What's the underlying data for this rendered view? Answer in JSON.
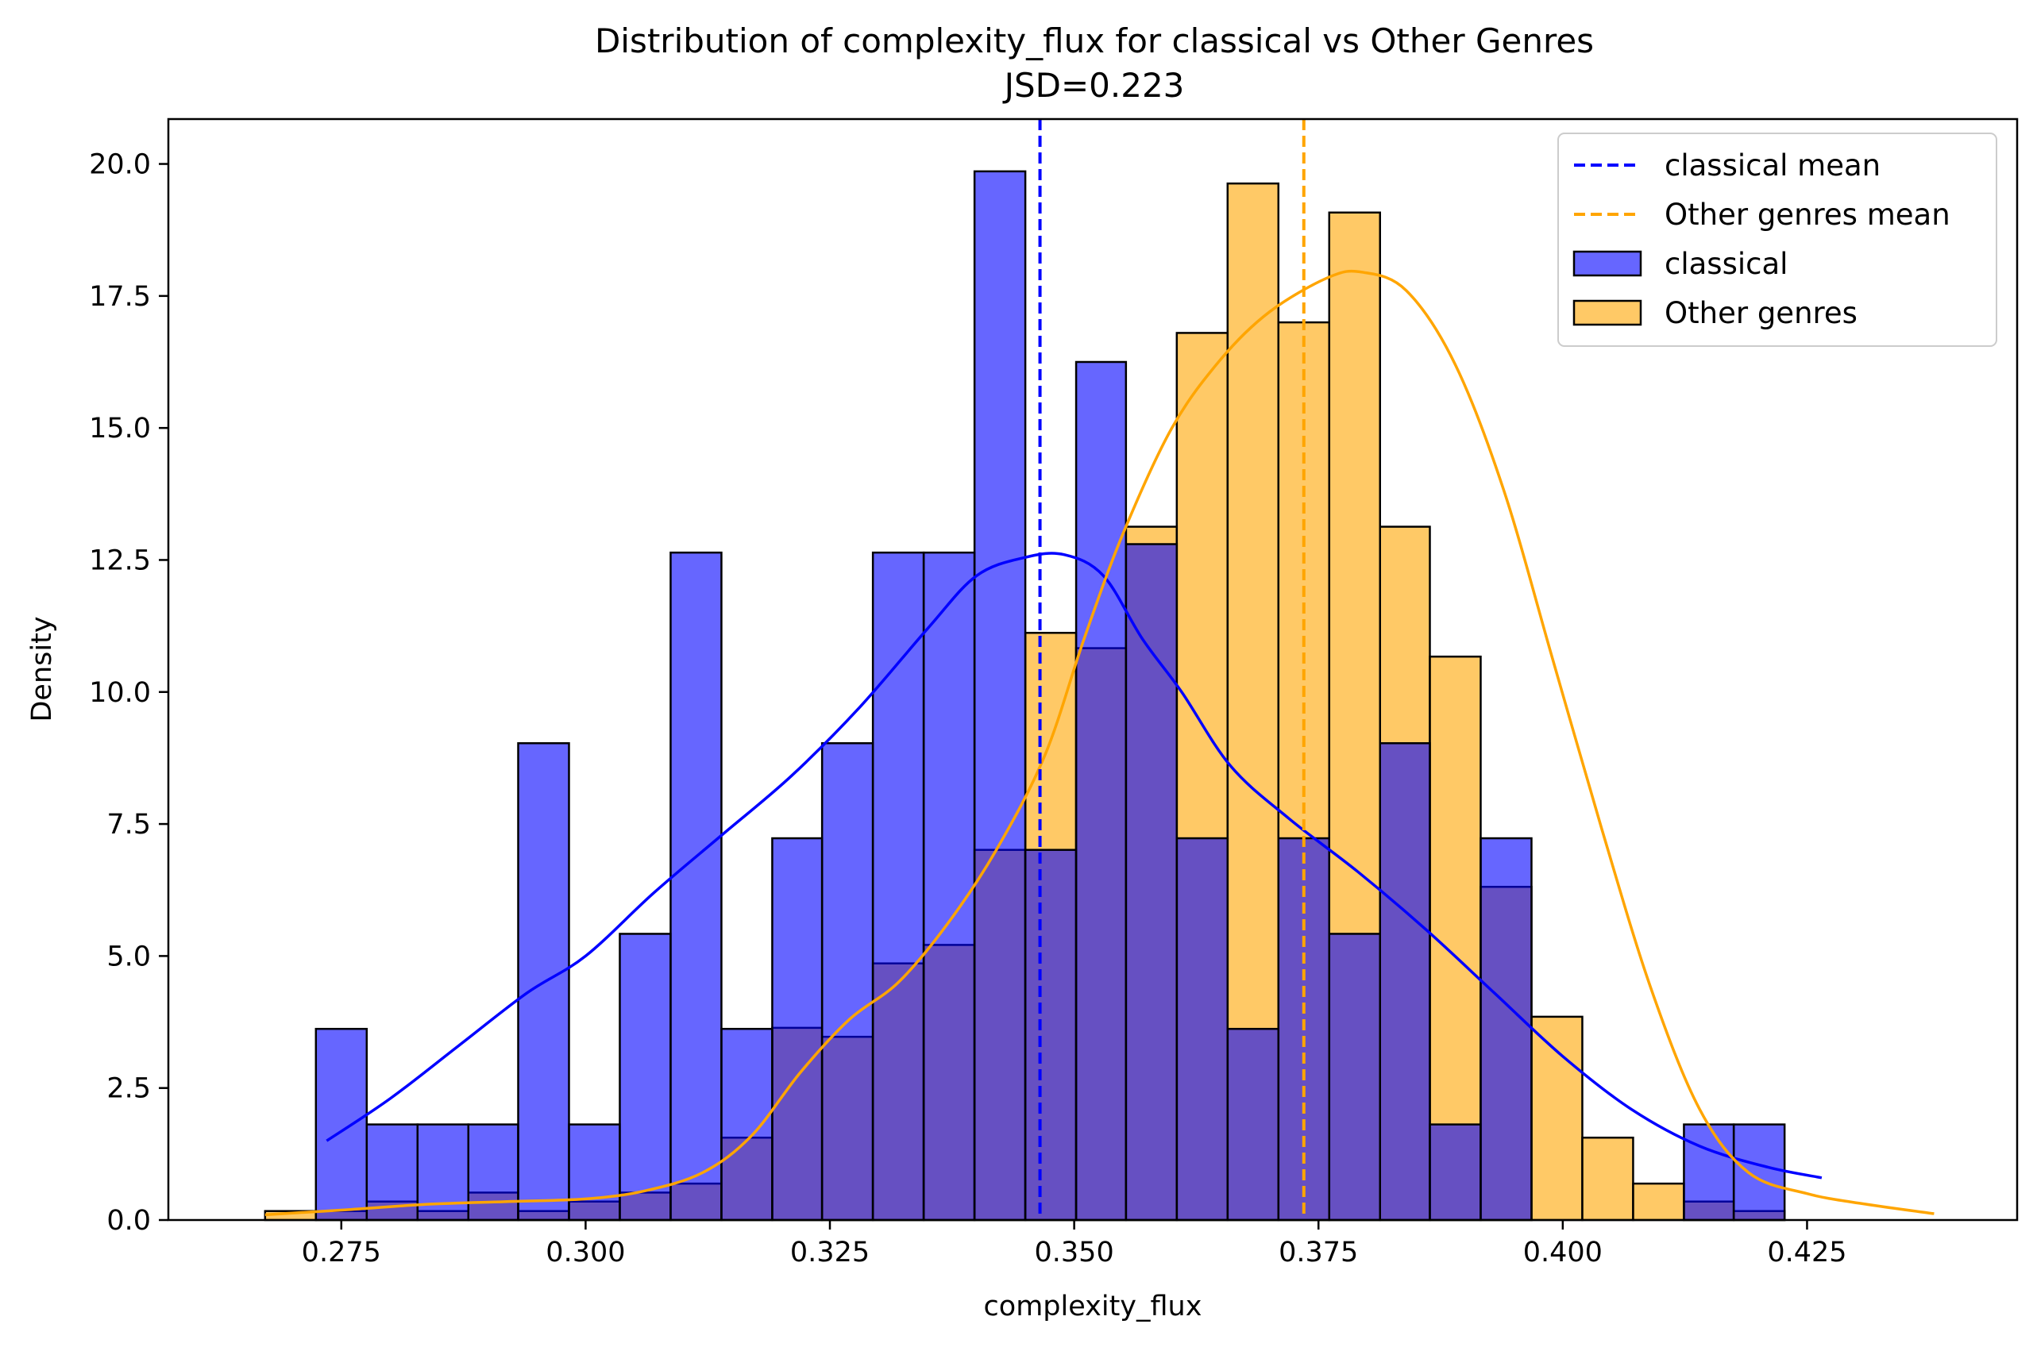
{
  "chart_data": {
    "type": "histogram",
    "title": "Distribution of complexity_flux for classical vs Other Genres",
    "subtitle": "JSD=0.223",
    "xlabel": "complexity_flux",
    "ylabel": "Density",
    "xlim": [
      0.2573,
      0.4465
    ],
    "ylim": [
      0,
      20.85
    ],
    "xticks": [
      {
        "value": 0.275,
        "label": "0.275"
      },
      {
        "value": 0.3,
        "label": "0.300"
      },
      {
        "value": 0.325,
        "label": "0.325"
      },
      {
        "value": 0.35,
        "label": "0.350"
      },
      {
        "value": 0.375,
        "label": "0.375"
      },
      {
        "value": 0.4,
        "label": "0.400"
      },
      {
        "value": 0.425,
        "label": "0.425"
      }
    ],
    "yticks": [
      {
        "value": 0.0,
        "label": "0.0"
      },
      {
        "value": 2.5,
        "label": "2.5"
      },
      {
        "value": 5.0,
        "label": "5.0"
      },
      {
        "value": 7.5,
        "label": "7.5"
      },
      {
        "value": 10.0,
        "label": "10.0"
      },
      {
        "value": 12.5,
        "label": "12.5"
      },
      {
        "value": 15.0,
        "label": "15.0"
      },
      {
        "value": 17.5,
        "label": "17.5"
      },
      {
        "value": 20.0,
        "label": "20.0"
      }
    ],
    "grid": false,
    "legend_position": "top-right",
    "legend": [
      {
        "label": "classical mean",
        "kind": "dashed-line",
        "color": "#0000ff"
      },
      {
        "label": "Other genres mean",
        "kind": "dashed-line",
        "color": "#ffa500"
      },
      {
        "label": "classical",
        "kind": "patch",
        "color": "#6666ff"
      },
      {
        "label": "Other genres",
        "kind": "patch",
        "color": "#ffc966"
      }
    ],
    "series": [
      {
        "name": "classical",
        "color": "#0000ff",
        "fill": "#6666ff",
        "bins": [
          {
            "x0": 0.2724,
            "x1": 0.2776,
            "value": 3.62
          },
          {
            "x0": 0.2776,
            "x1": 0.2828,
            "value": 1.81
          },
          {
            "x0": 0.2828,
            "x1": 0.288,
            "value": 1.81
          },
          {
            "x0": 0.288,
            "x1": 0.2931,
            "value": 1.81
          },
          {
            "x0": 0.2931,
            "x1": 0.2983,
            "value": 9.03
          },
          {
            "x0": 0.2983,
            "x1": 0.3035,
            "value": 1.81
          },
          {
            "x0": 0.3035,
            "x1": 0.3087,
            "value": 5.42
          },
          {
            "x0": 0.3087,
            "x1": 0.3139,
            "value": 12.64
          },
          {
            "x0": 0.3139,
            "x1": 0.3191,
            "value": 3.62
          },
          {
            "x0": 0.3191,
            "x1": 0.3242,
            "value": 7.23
          },
          {
            "x0": 0.3242,
            "x1": 0.3294,
            "value": 9.03
          },
          {
            "x0": 0.3294,
            "x1": 0.3346,
            "value": 12.64
          },
          {
            "x0": 0.3346,
            "x1": 0.3398,
            "value": 12.64
          },
          {
            "x0": 0.3398,
            "x1": 0.345,
            "value": 19.86
          },
          {
            "x0": 0.345,
            "x1": 0.3502,
            "value": 7.01
          },
          {
            "x0": 0.3502,
            "x1": 0.3553,
            "value": 16.25
          },
          {
            "x0": 0.3553,
            "x1": 0.3605,
            "value": 12.8
          },
          {
            "x0": 0.3605,
            "x1": 0.3657,
            "value": 7.23
          },
          {
            "x0": 0.3657,
            "x1": 0.3709,
            "value": 3.62
          },
          {
            "x0": 0.3709,
            "x1": 0.3761,
            "value": 7.23
          },
          {
            "x0": 0.3761,
            "x1": 0.3813,
            "value": 5.42
          },
          {
            "x0": 0.3813,
            "x1": 0.3864,
            "value": 9.03
          },
          {
            "x0": 0.3864,
            "x1": 0.3916,
            "value": 1.81
          },
          {
            "x0": 0.3916,
            "x1": 0.3968,
            "value": 7.23
          },
          {
            "x0": 0.402,
            "x1": 0.4072,
            "value": 0.0
          },
          {
            "x0": 0.4124,
            "x1": 0.4175,
            "value": 1.81
          },
          {
            "x0": 0.4175,
            "x1": 0.4227,
            "value": 1.81
          }
        ],
        "kde": {
          "x": [
            0.2735,
            0.28,
            0.287,
            0.294,
            0.3,
            0.307,
            0.314,
            0.321,
            0.328,
            0.335,
            0.34,
            0.345,
            0.349,
            0.353,
            0.357,
            0.361,
            0.366,
            0.372,
            0.379,
            0.386,
            0.393,
            0.4,
            0.407,
            0.414,
            0.421,
            0.4265
          ],
          "y": [
            1.5,
            2.3,
            3.3,
            4.3,
            5.0,
            6.2,
            7.3,
            8.4,
            9.7,
            11.2,
            12.2,
            12.55,
            12.6,
            12.2,
            11.0,
            10.0,
            8.6,
            7.6,
            6.6,
            5.5,
            4.3,
            3.1,
            2.1,
            1.4,
            1.0,
            0.8
          ]
        },
        "mean": 0.3465
      },
      {
        "name": "Other genres",
        "color": "#ffa500",
        "fill": "#ffc966",
        "bins": [
          {
            "x0": 0.2672,
            "x1": 0.2724,
            "value": 0.17
          },
          {
            "x0": 0.2724,
            "x1": 0.2776,
            "value": 0.17
          },
          {
            "x0": 0.2776,
            "x1": 0.2828,
            "value": 0.35
          },
          {
            "x0": 0.2828,
            "x1": 0.288,
            "value": 0.17
          },
          {
            "x0": 0.288,
            "x1": 0.2931,
            "value": 0.52
          },
          {
            "x0": 0.2931,
            "x1": 0.2983,
            "value": 0.17
          },
          {
            "x0": 0.2983,
            "x1": 0.3035,
            "value": 0.35
          },
          {
            "x0": 0.3035,
            "x1": 0.3087,
            "value": 0.52
          },
          {
            "x0": 0.3087,
            "x1": 0.3139,
            "value": 0.69
          },
          {
            "x0": 0.3139,
            "x1": 0.3191,
            "value": 1.56
          },
          {
            "x0": 0.3191,
            "x1": 0.3242,
            "value": 3.64
          },
          {
            "x0": 0.3242,
            "x1": 0.3294,
            "value": 3.47
          },
          {
            "x0": 0.3294,
            "x1": 0.3346,
            "value": 4.86
          },
          {
            "x0": 0.3346,
            "x1": 0.3398,
            "value": 5.21
          },
          {
            "x0": 0.3398,
            "x1": 0.345,
            "value": 7.01
          },
          {
            "x0": 0.345,
            "x1": 0.3502,
            "value": 11.12
          },
          {
            "x0": 0.3502,
            "x1": 0.3553,
            "value": 10.83
          },
          {
            "x0": 0.3553,
            "x1": 0.3605,
            "value": 13.13
          },
          {
            "x0": 0.3605,
            "x1": 0.3657,
            "value": 16.8
          },
          {
            "x0": 0.3657,
            "x1": 0.3709,
            "value": 19.63
          },
          {
            "x0": 0.3709,
            "x1": 0.3761,
            "value": 17.0
          },
          {
            "x0": 0.3761,
            "x1": 0.3813,
            "value": 19.08
          },
          {
            "x0": 0.3813,
            "x1": 0.3864,
            "value": 13.13
          },
          {
            "x0": 0.3864,
            "x1": 0.3916,
            "value": 10.67
          },
          {
            "x0": 0.3916,
            "x1": 0.3968,
            "value": 6.31
          },
          {
            "x0": 0.3968,
            "x1": 0.402,
            "value": 3.85
          },
          {
            "x0": 0.402,
            "x1": 0.4072,
            "value": 1.56
          },
          {
            "x0": 0.4072,
            "x1": 0.4124,
            "value": 0.69
          },
          {
            "x0": 0.4124,
            "x1": 0.4175,
            "value": 0.35
          },
          {
            "x0": 0.4175,
            "x1": 0.4227,
            "value": 0.17
          }
        ],
        "kde": {
          "x": [
            0.2672,
            0.276,
            0.284,
            0.292,
            0.3,
            0.306,
            0.312,
            0.317,
            0.322,
            0.327,
            0.332,
            0.337,
            0.342,
            0.347,
            0.351,
            0.355,
            0.36,
            0.365,
            0.37,
            0.376,
            0.3795,
            0.384,
            0.389,
            0.394,
            0.399,
            0.404,
            0.409,
            0.414,
            0.419,
            0.425,
            0.431,
            0.438
          ],
          "y": [
            0.1,
            0.2,
            0.3,
            0.35,
            0.4,
            0.55,
            0.9,
            1.6,
            2.8,
            3.8,
            4.5,
            5.6,
            7.0,
            8.8,
            11.0,
            13.0,
            15.0,
            16.3,
            17.2,
            17.85,
            17.95,
            17.6,
            16.2,
            13.8,
            10.6,
            7.4,
            4.4,
            2.1,
            0.9,
            0.5,
            0.3,
            0.12
          ]
        },
        "mean": 0.3735
      }
    ]
  }
}
